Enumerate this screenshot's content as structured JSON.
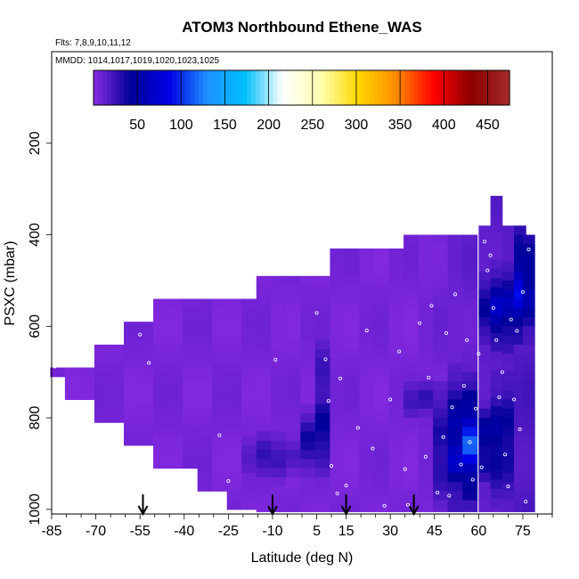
{
  "chart_data": {
    "type": "heatmap",
    "title": "ATOM3 Northbound Ethene_WAS",
    "flights_note": "Flts: 7,8,9,10,11,12",
    "dates_note": "MMDD: 1014,1017,1019,1020,1023,1025",
    "xlabel": "Latitude (deg N)",
    "ylabel": "PSXC (mbar)",
    "xlim": [
      -85,
      85
    ],
    "ylim": [
      1010,
      0
    ],
    "x_ticks": [
      -85,
      -70,
      -55,
      -40,
      -25,
      -10,
      5,
      15,
      30,
      45,
      60,
      75
    ],
    "y_ticks": [
      200,
      400,
      600,
      800,
      1000
    ],
    "colorbar": {
      "range": [
        0,
        475
      ],
      "ticks": [
        50,
        100,
        150,
        200,
        250,
        300,
        350,
        400,
        450
      ],
      "stops": [
        "#8a2be2",
        "#00009a",
        "#0000e6",
        "#1e90ff",
        "#00bfff",
        "#ffffff",
        "#ffffb0",
        "#ffd700",
        "#ff8c00",
        "#ff0000",
        "#8b0000",
        "#a52a2a"
      ]
    },
    "arrows_latitude": [
      -54,
      -10,
      15,
      38
    ],
    "column_tops_mbar": [
      [
        -83,
        690
      ],
      [
        -78,
        690
      ],
      [
        -73,
        690
      ],
      [
        -68,
        640
      ],
      [
        -63,
        640
      ],
      [
        -58,
        590
      ],
      [
        -53,
        590
      ],
      [
        -48,
        540
      ],
      [
        -43,
        540
      ],
      [
        -38,
        540
      ],
      [
        -33,
        540
      ],
      [
        -28,
        540
      ],
      [
        -23,
        540
      ],
      [
        -18,
        540
      ],
      [
        -13,
        490
      ],
      [
        -8,
        490
      ],
      [
        -3,
        490
      ],
      [
        2,
        490
      ],
      [
        7,
        490
      ],
      [
        12,
        430
      ],
      [
        17,
        430
      ],
      [
        22,
        430
      ],
      [
        27,
        430
      ],
      [
        32,
        430
      ],
      [
        37,
        400
      ],
      [
        42,
        400
      ],
      [
        47,
        400
      ],
      [
        52,
        400
      ],
      [
        57,
        400
      ],
      [
        62,
        380
      ],
      [
        66,
        315
      ],
      [
        70,
        380
      ],
      [
        74,
        380
      ],
      [
        77,
        400
      ]
    ],
    "column_bottoms_mbar": [
      [
        -83,
        710
      ],
      [
        -78,
        760
      ],
      [
        -73,
        760
      ],
      [
        -68,
        810
      ],
      [
        -63,
        810
      ],
      [
        -58,
        860
      ],
      [
        -53,
        860
      ],
      [
        -48,
        910
      ],
      [
        -43,
        910
      ],
      [
        -38,
        910
      ],
      [
        -33,
        960
      ],
      [
        -28,
        960
      ],
      [
        -23,
        1000
      ],
      [
        -18,
        1000
      ],
      [
        -13,
        1005
      ],
      [
        -8,
        1005
      ],
      [
        -3,
        1005
      ],
      [
        2,
        1005
      ],
      [
        7,
        1005
      ],
      [
        12,
        1005
      ],
      [
        17,
        1005
      ],
      [
        22,
        1005
      ],
      [
        27,
        1005
      ],
      [
        32,
        1005
      ],
      [
        37,
        1005
      ],
      [
        42,
        1005
      ],
      [
        47,
        1005
      ],
      [
        52,
        1005
      ],
      [
        57,
        1005
      ],
      [
        62,
        1005
      ],
      [
        66,
        1005
      ],
      [
        70,
        1005
      ],
      [
        74,
        1005
      ],
      [
        77,
        1005
      ]
    ],
    "enhancements": [
      {
        "lat": [
          0,
          10
        ],
        "p": [
          780,
          910
        ],
        "value": 40
      },
      {
        "lat": [
          7,
          10
        ],
        "p": [
          640,
          830
        ],
        "value": 55
      },
      {
        "lat": [
          -18,
          0
        ],
        "p": [
          840,
          930
        ],
        "value": 25
      },
      {
        "lat": [
          45,
          60
        ],
        "p": [
          720,
          1000
        ],
        "value": 45
      },
      {
        "lat": [
          53,
          62
        ],
        "p": [
          760,
          960
        ],
        "value": 60
      },
      {
        "lat": [
          60,
          75
        ],
        "p": [
          480,
          640
        ],
        "value": 45
      },
      {
        "lat": [
          63,
          72
        ],
        "p": [
          720,
          960
        ],
        "value": 35
      },
      {
        "lat": [
          72,
          78
        ],
        "p": [
          400,
          620
        ],
        "value": 50
      },
      {
        "lat": [
          35,
          47
        ],
        "p": [
          720,
          800
        ],
        "value": 22
      }
    ],
    "sample_points": [
      [
        -84,
        688
      ],
      [
        -55,
        618
      ],
      [
        -52,
        680
      ],
      [
        -28,
        838
      ],
      [
        -25,
        938
      ],
      [
        -9,
        673
      ],
      [
        5,
        571
      ],
      [
        8,
        672
      ],
      [
        9,
        763
      ],
      [
        10,
        905
      ],
      [
        12,
        965
      ],
      [
        22,
        609
      ],
      [
        19,
        822
      ],
      [
        28,
        992
      ],
      [
        35,
        912
      ],
      [
        43,
        712
      ],
      [
        48,
        842
      ],
      [
        52,
        530
      ],
      [
        55,
        730
      ],
      [
        57,
        853
      ],
      [
        58,
        935
      ],
      [
        60,
        660
      ],
      [
        61,
        908
      ],
      [
        62,
        415
      ],
      [
        63,
        478
      ],
      [
        65,
        560
      ],
      [
        66,
        630
      ],
      [
        68,
        700
      ],
      [
        69,
        880
      ],
      [
        70,
        950
      ],
      [
        72,
        760
      ],
      [
        73,
        610
      ],
      [
        74,
        825
      ],
      [
        75,
        525
      ],
      [
        76,
        983
      ],
      [
        77,
        432
      ],
      [
        46,
        963
      ],
      [
        40,
        593
      ],
      [
        33,
        655
      ],
      [
        36,
        990
      ],
      [
        42,
        885
      ],
      [
        49,
        615
      ],
      [
        51,
        777
      ],
      [
        54,
        902
      ],
      [
        64,
        445
      ],
      [
        67,
        755
      ],
      [
        71,
        585
      ],
      [
        24,
        867
      ],
      [
        15,
        948
      ],
      [
        13,
        714
      ],
      [
        30,
        760
      ],
      [
        56,
        630
      ],
      [
        59,
        780
      ],
      [
        50,
        970
      ],
      [
        44,
        555
      ]
    ]
  }
}
